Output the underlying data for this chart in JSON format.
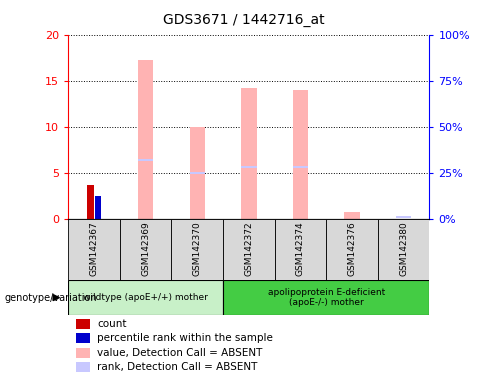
{
  "title": "GDS3671 / 1442716_at",
  "samples": [
    "GSM142367",
    "GSM142369",
    "GSM142370",
    "GSM142372",
    "GSM142374",
    "GSM142376",
    "GSM142380"
  ],
  "count_values": [
    3.7,
    0,
    0,
    0,
    0,
    0,
    0
  ],
  "rank_values": [
    2.5,
    0,
    0,
    0,
    0,
    0,
    0
  ],
  "pink_bar_values": [
    0,
    17.2,
    10.0,
    14.2,
    14.0,
    0.8,
    0
  ],
  "blue_rank_values": [
    0,
    6.4,
    5.0,
    5.6,
    5.6,
    0,
    0.2
  ],
  "ylim_left": [
    0,
    20
  ],
  "ylim_right": [
    0,
    100
  ],
  "yticks_left": [
    0,
    5,
    10,
    15,
    20
  ],
  "yticks_right": [
    0,
    25,
    50,
    75,
    100
  ],
  "ytick_labels_left": [
    "0",
    "5",
    "10",
    "15",
    "20"
  ],
  "ytick_labels_right": [
    "0%",
    "25%",
    "50%",
    "75%",
    "100%"
  ],
  "group1_label": "wildtype (apoE+/+) mother",
  "group2_label": "apolipoprotein E-deficient\n(apoE-/-) mother",
  "group1_indices": [
    0,
    1,
    2
  ],
  "group2_indices": [
    3,
    4,
    5,
    6
  ],
  "genotype_label": "genotype/variation",
  "legend_items": [
    {
      "color": "#cc0000",
      "label": "count"
    },
    {
      "color": "#0000cc",
      "label": "percentile rank within the sample"
    },
    {
      "color": "#ffb3b3",
      "label": "value, Detection Call = ABSENT"
    },
    {
      "color": "#c8c8ff",
      "label": "rank, Detection Call = ABSENT"
    }
  ],
  "bar_color_red": "#cc0000",
  "bar_color_darkblue": "#0000cc",
  "bar_color_pink": "#ffb3b3",
  "bar_color_lightblue": "#c8c8ff",
  "group1_bg": "#c8f0c8",
  "group2_bg": "#44cc44",
  "plot_bg": "#ffffff",
  "pink_bar_width": 0.3,
  "red_bar_width": 0.12,
  "blue_bar_width": 0.12
}
